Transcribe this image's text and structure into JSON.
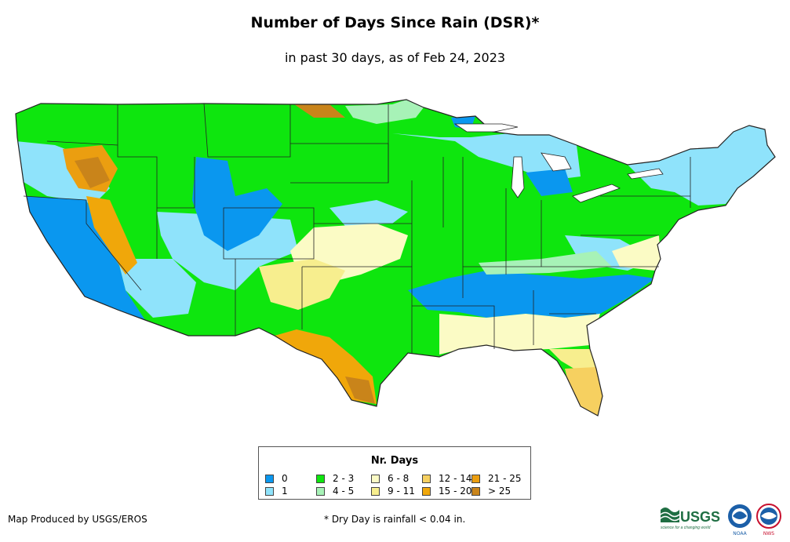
{
  "title": "Number of Days Since Rain (DSR)*",
  "subtitle": "in past 30 days, as of Feb 24, 2023",
  "legend": {
    "title": "Nr. Days",
    "items": [
      {
        "label": "0",
        "color": "#0a97ef"
      },
      {
        "label": "1",
        "color": "#8fe3fb"
      },
      {
        "label": "2 - 3",
        "color": "#0ee60e"
      },
      {
        "label": "4 - 5",
        "color": "#a7f2b7"
      },
      {
        "label": "6 - 8",
        "color": "#fbfbc5"
      },
      {
        "label": "9 - 11",
        "color": "#f7ee8e"
      },
      {
        "label": "12 - 14",
        "color": "#f6d060"
      },
      {
        "label": "15 - 20",
        "color": "#f0a70a"
      },
      {
        "label": "21 - 25",
        "color": "#eb9e10"
      },
      {
        "label": "> 25",
        "color": "#c9841a"
      }
    ]
  },
  "credit": "Map Produced by USGS/EROS",
  "footnote": "* Dry Day is rainfall < 0.04 in.",
  "logos": {
    "usgs_text": "USGS",
    "usgs_tagline": "science for a changing world",
    "noaa_text": "NOAA",
    "nws_text": "NWS"
  }
}
